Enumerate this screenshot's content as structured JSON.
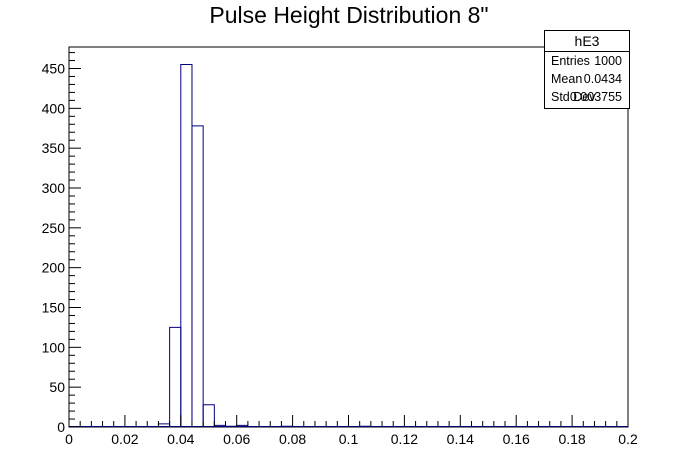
{
  "chart_data": {
    "type": "bar",
    "title": "Pulse Height Distribution 8\"",
    "xlabel": "",
    "ylabel": "",
    "xlim": [
      0,
      0.2
    ],
    "ylim": [
      0,
      477
    ],
    "bin_width": 0.004,
    "x_ticks": [
      "0",
      "0.02",
      "0.04",
      "0.06",
      "0.08",
      "0.1",
      "0.12",
      "0.14",
      "0.16",
      "0.18",
      "0.2"
    ],
    "y_ticks": [
      "0",
      "50",
      "100",
      "150",
      "200",
      "250",
      "300",
      "350",
      "400",
      "450"
    ],
    "bins": [
      {
        "lo": 0.032,
        "hi": 0.036,
        "count": 4
      },
      {
        "lo": 0.036,
        "hi": 0.04,
        "count": 125
      },
      {
        "lo": 0.04,
        "hi": 0.044,
        "count": 455
      },
      {
        "lo": 0.044,
        "hi": 0.048,
        "count": 378
      },
      {
        "lo": 0.048,
        "hi": 0.052,
        "count": 28
      },
      {
        "lo": 0.052,
        "hi": 0.056,
        "count": 2
      },
      {
        "lo": 0.056,
        "hi": 0.06,
        "count": 1
      },
      {
        "lo": 0.06,
        "hi": 0.064,
        "count": 2
      },
      {
        "lo": 0.076,
        "hi": 0.08,
        "count": 1
      },
      {
        "lo": 0.104,
        "hi": 0.108,
        "count": 1
      }
    ],
    "line_color": "#000080",
    "grid": false,
    "legend": "stats box top-right"
  },
  "stats": {
    "name": "hE3",
    "rows": [
      {
        "label": "Entries",
        "value": "1000"
      },
      {
        "label": "Mean",
        "value": "0.0434"
      },
      {
        "label": "Std Dev",
        "value": "0.003755"
      }
    ]
  }
}
